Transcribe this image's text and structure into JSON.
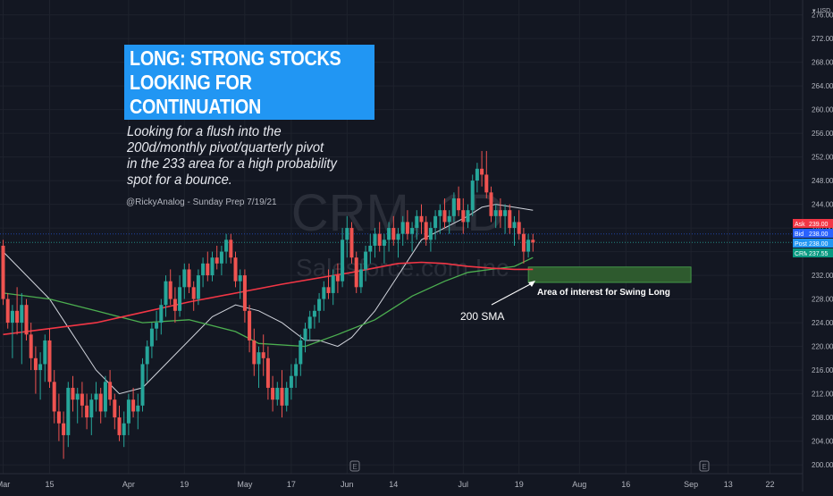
{
  "currency": "USD",
  "banner": {
    "line1": "LONG: STRONG STOCKS",
    "line2": "LOOKING FOR",
    "line3": "CONTINUATION"
  },
  "note": {
    "line1": "Looking for a flush into the",
    "line2": "200d/monthly pivot/quarterly pivot",
    "line3": "in the 233 area for a high probability",
    "line4": "spot for a bounce."
  },
  "credit": "@RickyAnalog - Sunday Prep 7/19/21",
  "watermark": {
    "symbol": "CRM, 1D",
    "company": "Salesforce.com Inc"
  },
  "annotations": {
    "zone_label": "Area of interest for Swing Long",
    "sma_label": "200 SMA"
  },
  "event_markers": [
    "E",
    "E"
  ],
  "price_tags": [
    {
      "label": "Ask",
      "value": "239.00",
      "color": "#f23645"
    },
    {
      "label": "Bid",
      "value": "238.00",
      "color": "#2962ff"
    },
    {
      "label": "Post",
      "value": "238.00",
      "color": "#2196f3"
    },
    {
      "label": "CRM",
      "value": "237.55",
      "color": "#089981"
    }
  ],
  "colors": {
    "background": "#131722",
    "up": "#26a69a",
    "down": "#ef5350",
    "sma200": "#f23645",
    "sma50": "#4caf50",
    "sma20": "#d1d4dc",
    "zone": "#2e5a2e"
  },
  "chart_data": {
    "type": "candlestick",
    "title": "CRM, 1D",
    "subtitle": "Salesforce.com Inc",
    "ylabel": "USD",
    "ylim": [
      198.5,
      278.5
    ],
    "yticks": [
      "276.00",
      "272.00",
      "268.00",
      "264.00",
      "260.00",
      "256.00",
      "252.00",
      "248.00",
      "244.00",
      "240.00",
      "236.00",
      "232.00",
      "228.00",
      "224.00",
      "220.00",
      "216.00",
      "212.00",
      "208.00",
      "204.00",
      "200.00"
    ],
    "xlabels": [
      {
        "label": "Mar",
        "day": 0
      },
      {
        "label": "15",
        "day": 10
      },
      {
        "label": "Apr",
        "day": 27
      },
      {
        "label": "19",
        "day": 39
      },
      {
        "label": "May",
        "day": 52
      },
      {
        "label": "17",
        "day": 62
      },
      {
        "label": "Jun",
        "day": 74
      },
      {
        "label": "14",
        "day": 84
      },
      {
        "label": "Jul",
        "day": 99
      },
      {
        "label": "19",
        "day": 111
      },
      {
        "label": "Aug",
        "day": 124
      },
      {
        "label": "16",
        "day": 134
      },
      {
        "label": "Sep",
        "day": 148
      },
      {
        "label": "13",
        "day": 156
      },
      {
        "label": "22",
        "day": 165
      }
    ],
    "candles": [
      [
        237,
        238,
        227,
        228
      ],
      [
        228,
        229,
        223,
        224
      ],
      [
        224,
        227,
        218,
        226
      ],
      [
        226,
        230,
        222,
        224
      ],
      [
        224,
        229,
        217,
        227
      ],
      [
        227,
        228,
        221,
        222
      ],
      [
        222,
        224,
        216,
        218
      ],
      [
        218,
        220,
        212,
        216
      ],
      [
        216,
        219,
        211,
        217
      ],
      [
        217,
        222,
        214,
        221
      ],
      [
        221,
        223,
        213,
        214
      ],
      [
        214,
        216,
        207,
        209
      ],
      [
        209,
        212,
        204,
        207
      ],
      [
        207,
        209,
        201,
        205
      ],
      [
        205,
        214,
        203,
        213
      ],
      [
        213,
        215,
        209,
        211
      ],
      [
        211,
        213,
        207,
        212
      ],
      [
        212,
        214,
        208,
        210
      ],
      [
        210,
        212,
        206,
        208
      ],
      [
        208,
        212,
        205,
        211
      ],
      [
        211,
        214,
        209,
        212
      ],
      [
        212,
        213,
        207,
        209
      ],
      [
        209,
        215,
        208,
        214
      ],
      [
        214,
        216,
        210,
        211
      ],
      [
        211,
        212,
        206,
        208
      ],
      [
        208,
        210,
        204,
        205
      ],
      [
        205,
        209,
        203,
        207
      ],
      [
        207,
        212,
        205,
        211
      ],
      [
        211,
        213,
        208,
        209
      ],
      [
        209,
        212,
        206,
        210
      ],
      [
        210,
        218,
        209,
        217
      ],
      [
        217,
        221,
        214,
        220
      ],
      [
        220,
        224,
        218,
        223
      ],
      [
        223,
        226,
        221,
        224
      ],
      [
        224,
        228,
        222,
        227
      ],
      [
        227,
        232,
        225,
        231
      ],
      [
        231,
        233,
        227,
        228
      ],
      [
        228,
        230,
        224,
        226
      ],
      [
        226,
        232,
        225,
        230
      ],
      [
        230,
        234,
        228,
        233
      ],
      [
        233,
        234,
        229,
        230
      ],
      [
        230,
        231,
        226,
        228
      ],
      [
        228,
        233,
        227,
        232
      ],
      [
        232,
        235,
        230,
        234
      ],
      [
        234,
        236,
        231,
        232
      ],
      [
        232,
        236,
        231,
        235
      ],
      [
        235,
        237,
        233,
        234
      ],
      [
        234,
        237,
        232,
        236
      ],
      [
        236,
        239,
        234,
        238
      ],
      [
        238,
        239,
        234,
        235
      ],
      [
        235,
        236,
        230,
        231
      ],
      [
        231,
        233,
        228,
        232
      ],
      [
        232,
        233,
        224,
        226
      ],
      [
        226,
        227,
        219,
        221
      ],
      [
        221,
        223,
        215,
        217
      ],
      [
        217,
        220,
        213,
        219
      ],
      [
        219,
        222,
        215,
        218
      ],
      [
        218,
        220,
        211,
        213
      ],
      [
        213,
        215,
        209,
        211
      ],
      [
        211,
        214,
        210,
        213
      ],
      [
        213,
        216,
        208,
        210
      ],
      [
        210,
        214,
        209,
        213
      ],
      [
        213,
        217,
        211,
        215
      ],
      [
        215,
        218,
        213,
        217
      ],
      [
        217,
        222,
        215,
        221
      ],
      [
        221,
        224,
        219,
        223
      ],
      [
        223,
        226,
        221,
        225
      ],
      [
        225,
        227,
        223,
        226
      ],
      [
        226,
        229,
        224,
        228
      ],
      [
        228,
        231,
        226,
        230
      ],
      [
        230,
        233,
        228,
        229
      ],
      [
        229,
        233,
        227,
        232
      ],
      [
        232,
        234,
        229,
        231
      ],
      [
        231,
        240,
        230,
        238
      ],
      [
        238,
        242,
        235,
        240
      ],
      [
        240,
        241,
        234,
        235
      ],
      [
        235,
        236,
        229,
        230
      ],
      [
        230,
        234,
        229,
        233
      ],
      [
        233,
        237,
        231,
        236
      ],
      [
        236,
        239,
        234,
        237
      ],
      [
        237,
        240,
        235,
        239
      ],
      [
        239,
        241,
        236,
        237
      ],
      [
        237,
        239,
        234,
        238
      ],
      [
        238,
        241,
        236,
        240
      ],
      [
        240,
        242,
        237,
        238
      ],
      [
        238,
        240,
        235,
        239
      ],
      [
        239,
        242,
        237,
        241
      ],
      [
        241,
        243,
        238,
        239
      ],
      [
        239,
        241,
        236,
        240
      ],
      [
        240,
        243,
        238,
        242
      ],
      [
        242,
        244,
        239,
        241
      ],
      [
        241,
        242,
        237,
        238
      ],
      [
        238,
        241,
        236,
        240
      ],
      [
        240,
        243,
        238,
        242
      ],
      [
        242,
        244,
        239,
        243
      ],
      [
        243,
        245,
        240,
        241
      ],
      [
        241,
        243,
        239,
        242
      ],
      [
        242,
        246,
        241,
        245
      ],
      [
        245,
        247,
        242,
        243
      ],
      [
        243,
        245,
        239,
        241
      ],
      [
        241,
        244,
        240,
        243
      ],
      [
        243,
        249,
        242,
        248
      ],
      [
        248,
        251,
        246,
        250
      ],
      [
        250,
        253,
        247,
        249
      ],
      [
        249,
        253,
        245,
        246
      ],
      [
        246,
        247,
        241,
        242
      ],
      [
        242,
        244,
        240,
        243
      ],
      [
        243,
        245,
        240,
        242
      ],
      [
        242,
        244,
        239,
        243
      ],
      [
        243,
        244,
        239,
        240
      ],
      [
        240,
        242,
        237,
        241
      ],
      [
        241,
        243,
        238,
        239
      ],
      [
        239,
        240,
        234,
        236
      ],
      [
        236,
        239,
        235,
        238
      ],
      [
        238,
        239,
        236,
        237.55
      ]
    ],
    "sma200": [
      [
        0,
        222
      ],
      [
        20,
        224
      ],
      [
        40,
        227.5
      ],
      [
        60,
        230.5
      ],
      [
        75,
        232.5
      ],
      [
        85,
        234
      ],
      [
        90,
        234.2
      ],
      [
        95,
        234
      ],
      [
        100,
        233.5
      ],
      [
        105,
        233.2
      ],
      [
        110,
        233
      ],
      [
        114,
        233
      ]
    ],
    "sma50": [
      [
        0,
        229
      ],
      [
        10,
        228
      ],
      [
        20,
        226
      ],
      [
        30,
        224
      ],
      [
        40,
        224.5
      ],
      [
        50,
        222.5
      ],
      [
        55,
        220.5
      ],
      [
        65,
        220
      ],
      [
        72,
        222
      ],
      [
        80,
        224.5
      ],
      [
        88,
        228.5
      ],
      [
        95,
        231
      ],
      [
        100,
        232.5
      ],
      [
        105,
        233
      ],
      [
        110,
        233.5
      ],
      [
        114,
        235
      ]
    ],
    "sma20": [
      [
        0,
        236
      ],
      [
        5,
        232
      ],
      [
        10,
        228
      ],
      [
        15,
        222
      ],
      [
        20,
        216
      ],
      [
        25,
        212
      ],
      [
        30,
        213
      ],
      [
        35,
        217
      ],
      [
        40,
        221
      ],
      [
        45,
        225
      ],
      [
        50,
        227
      ],
      [
        55,
        226
      ],
      [
        60,
        224
      ],
      [
        65,
        221
      ],
      [
        68,
        221
      ],
      [
        72,
        220
      ],
      [
        75,
        221.5
      ],
      [
        80,
        226
      ],
      [
        85,
        232
      ],
      [
        90,
        238
      ],
      [
        95,
        240
      ],
      [
        100,
        242
      ],
      [
        103,
        243.5
      ],
      [
        106,
        244
      ],
      [
        110,
        243.5
      ],
      [
        114,
        243
      ]
    ],
    "zone": {
      "start_day": 113,
      "end_day": 148,
      "top": 233.4,
      "bottom": 230.8
    }
  }
}
